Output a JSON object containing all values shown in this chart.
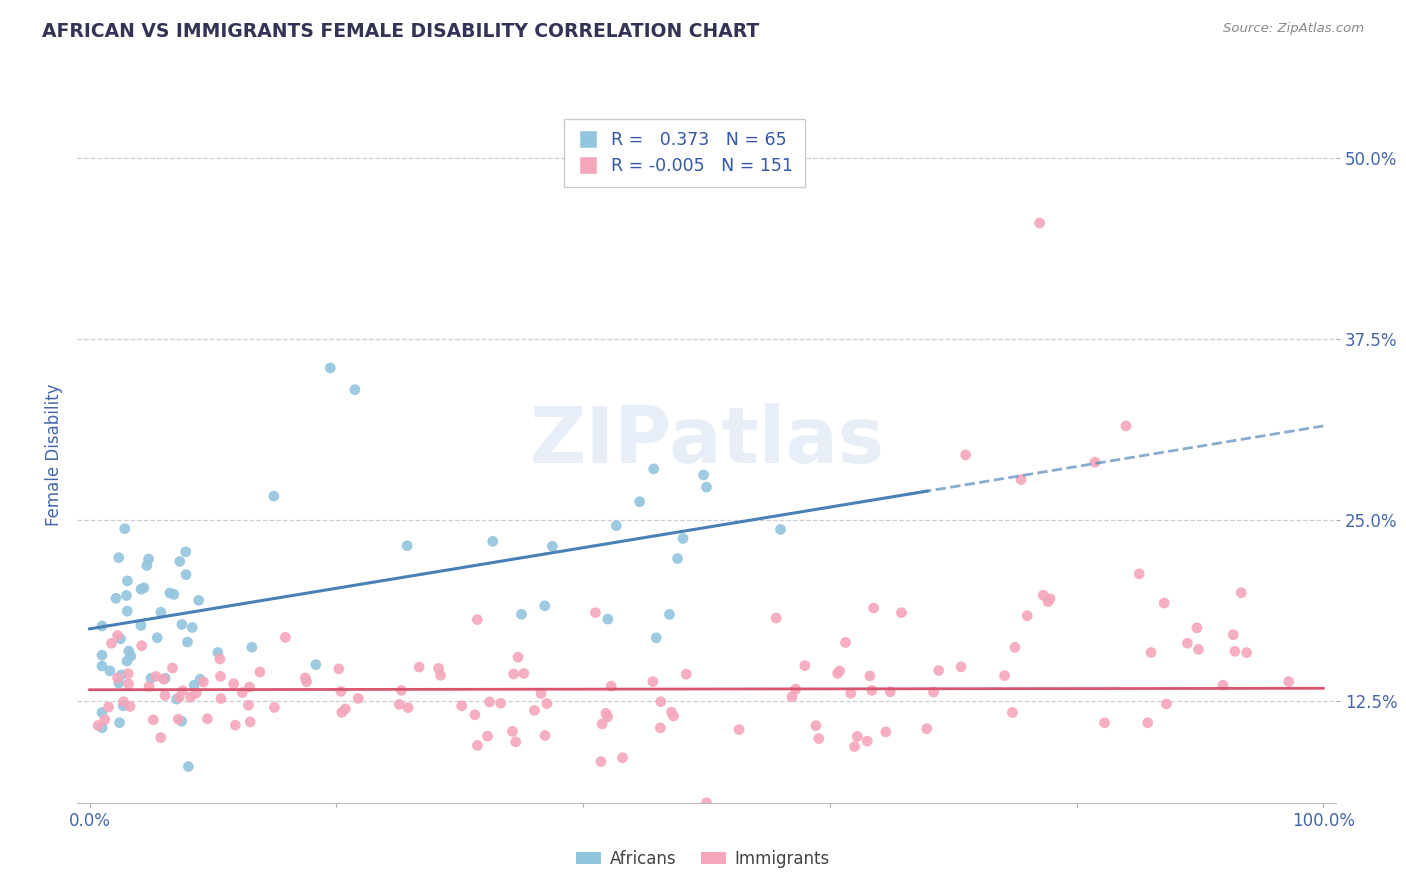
{
  "title": "AFRICAN VS IMMIGRANTS FEMALE DISABILITY CORRELATION CHART",
  "source": "Source: ZipAtlas.com",
  "ylabel": "Female Disability",
  "yticks": [
    0.125,
    0.25,
    0.375,
    0.5
  ],
  "ytick_labels": [
    "12.5%",
    "25.0%",
    "37.5%",
    "50.0%"
  ],
  "xtick_labels": [
    "0.0%",
    "",
    "",
    "",
    "",
    "100.0%"
  ],
  "legend_R_african": " 0.373",
  "legend_N_african": "65",
  "legend_R_immigrant": "-0.005",
  "legend_N_immigrant": "151",
  "african_color": "#92c5de",
  "immigrant_color": "#f4a6bb",
  "african_line_color": "#4a80b5",
  "immigrant_line_color": "#d9556e",
  "watermark": "ZIPatlas",
  "title_color": "#333355",
  "legend_text_color": "#3355aa",
  "axis_label_color": "#4466aa",
  "tick_color": "#4466aa",
  "source_color": "#888888",
  "background_color": "#ffffff",
  "grid_color": "#c8c8d8",
  "african_line_slope": 0.14,
  "african_line_intercept": 0.175,
  "immigrant_line_slope": 0.001,
  "immigrant_line_intercept": 0.133
}
